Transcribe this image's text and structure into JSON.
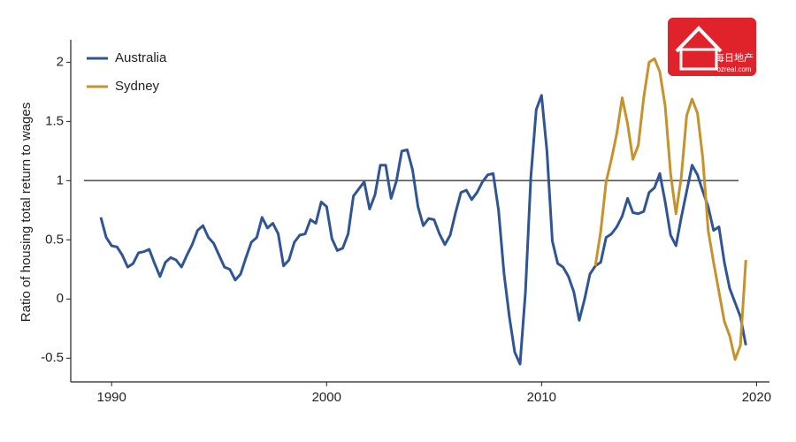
{
  "chart_data": {
    "type": "line",
    "y_label": "Ratio of housing total return to wages",
    "x": [
      1989.5,
      1989.75,
      1990,
      1990.25,
      1990.5,
      1990.75,
      1991,
      1991.25,
      1991.5,
      1991.75,
      1992,
      1992.25,
      1992.5,
      1992.75,
      1993,
      1993.25,
      1993.5,
      1993.75,
      1994,
      1994.25,
      1994.5,
      1994.75,
      1995,
      1995.25,
      1995.5,
      1995.75,
      1996,
      1996.25,
      1996.5,
      1996.75,
      1997,
      1997.25,
      1997.5,
      1997.75,
      1998,
      1998.25,
      1998.5,
      1998.75,
      1999,
      1999.25,
      1999.5,
      1999.75,
      2000,
      2000.25,
      2000.5,
      2000.75,
      2001,
      2001.25,
      2001.5,
      2001.75,
      2002,
      2002.25,
      2002.5,
      2002.75,
      2003,
      2003.25,
      2003.5,
      2003.75,
      2004,
      2004.25,
      2004.5,
      2004.75,
      2005,
      2005.25,
      2005.5,
      2005.75,
      2006,
      2006.25,
      2006.5,
      2006.75,
      2007,
      2007.25,
      2007.5,
      2007.75,
      2008,
      2008.25,
      2008.5,
      2008.75,
      2009,
      2009.25,
      2009.5,
      2009.75,
      2010,
      2010.25,
      2010.5,
      2010.75,
      2011,
      2011.25,
      2011.5,
      2011.75,
      2012,
      2012.25,
      2012.5,
      2012.75,
      2013,
      2013.25,
      2013.5,
      2013.75,
      2014,
      2014.25,
      2014.5,
      2014.75,
      2015,
      2015.25,
      2015.5,
      2015.75,
      2016,
      2016.25,
      2016.5,
      2016.75,
      2017,
      2017.25,
      2017.5,
      2017.75,
      2018,
      2018.25,
      2018.5,
      2018.75,
      2019,
      2019.25,
      2019.5
    ],
    "series": [
      {
        "name": "Australia",
        "color": "#2f5596",
        "values": [
          0.69,
          0.52,
          0.45,
          0.44,
          0.37,
          0.27,
          0.3,
          0.39,
          0.4,
          0.42,
          0.3,
          0.19,
          0.31,
          0.35,
          0.33,
          0.27,
          0.37,
          0.46,
          0.58,
          0.62,
          0.52,
          0.47,
          0.37,
          0.27,
          0.25,
          0.16,
          0.21,
          0.35,
          0.48,
          0.52,
          0.69,
          0.6,
          0.64,
          0.55,
          0.28,
          0.33,
          0.48,
          0.54,
          0.55,
          0.67,
          0.64,
          0.82,
          0.78,
          0.51,
          0.41,
          0.43,
          0.55,
          0.87,
          0.93,
          0.99,
          0.76,
          0.88,
          1.13,
          1.13,
          0.85,
          1.0,
          1.25,
          1.26,
          1.09,
          0.78,
          0.62,
          0.68,
          0.67,
          0.55,
          0.46,
          0.54,
          0.73,
          0.9,
          0.92,
          0.84,
          0.9,
          0.99,
          1.05,
          1.06,
          0.75,
          0.22,
          -0.15,
          -0.45,
          -0.55,
          0.06,
          1.03,
          1.6,
          1.72,
          1.25,
          0.49,
          0.3,
          0.27,
          0.19,
          0.06,
          -0.18,
          0.0,
          0.21,
          0.28,
          0.31,
          0.52,
          0.55,
          0.61,
          0.7,
          0.85,
          0.73,
          0.72,
          0.74,
          0.9,
          0.94,
          1.06,
          0.82,
          0.54,
          0.45,
          0.69,
          0.91,
          1.13,
          1.05,
          0.91,
          0.78,
          0.58,
          0.61,
          0.31,
          0.09,
          -0.03,
          -0.15,
          -0.39
        ]
      },
      {
        "name": "Sydney",
        "color": "#c8922a",
        "values": [
          null,
          null,
          null,
          null,
          null,
          null,
          null,
          null,
          null,
          null,
          null,
          null,
          null,
          null,
          null,
          null,
          null,
          null,
          null,
          null,
          null,
          null,
          null,
          null,
          null,
          null,
          null,
          null,
          null,
          null,
          null,
          null,
          null,
          null,
          null,
          null,
          null,
          null,
          null,
          null,
          null,
          null,
          null,
          null,
          null,
          null,
          null,
          null,
          null,
          null,
          null,
          null,
          null,
          null,
          null,
          null,
          null,
          null,
          null,
          null,
          null,
          null,
          null,
          null,
          null,
          null,
          null,
          null,
          null,
          null,
          null,
          null,
          null,
          null,
          null,
          null,
          null,
          null,
          null,
          null,
          null,
          null,
          null,
          null,
          null,
          null,
          null,
          null,
          null,
          null,
          null,
          null,
          0.28,
          0.57,
          0.99,
          1.18,
          1.4,
          1.7,
          1.48,
          1.18,
          1.3,
          1.7,
          2.0,
          2.03,
          1.92,
          1.63,
          1.06,
          0.72,
          1.03,
          1.55,
          1.69,
          1.57,
          1.19,
          0.58,
          0.31,
          0.06,
          -0.19,
          -0.31,
          -0.51,
          -0.39,
          0.33
        ]
      }
    ],
    "xlim": [
      1988.1,
      2020.6
    ],
    "xticks": [
      1990,
      2000,
      2010,
      2020
    ],
    "ylim": [
      -0.7,
      2.19
    ],
    "yticks": [
      -0.5,
      0,
      0.5,
      1,
      1.5,
      2
    ],
    "reference_line": 1,
    "legend": "top-left",
    "watermark": {
      "text": "每日地产",
      "url": "ozreal.com"
    }
  }
}
